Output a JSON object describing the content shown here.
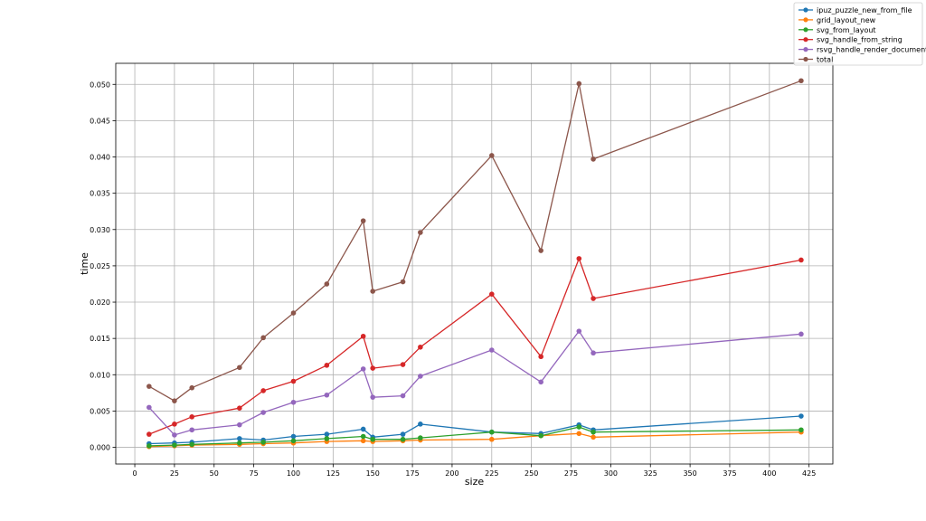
{
  "chart_data": {
    "type": "line",
    "xlabel": "size",
    "ylabel": "time",
    "xlim": [
      -12,
      440
    ],
    "ylim": [
      -0.0023,
      0.0529
    ],
    "xticks": [
      0,
      25,
      50,
      75,
      100,
      125,
      150,
      175,
      200,
      225,
      250,
      275,
      300,
      325,
      350,
      375,
      400,
      425
    ],
    "xtick_labels": [
      "0",
      "25",
      "50",
      "75",
      "100",
      "125",
      "150",
      "175",
      "200",
      "225",
      "250",
      "275",
      "300",
      "325",
      "350",
      "375",
      "400",
      "425"
    ],
    "yticks": [
      0.0,
      0.005,
      0.01,
      0.015,
      0.02,
      0.025,
      0.03,
      0.035,
      0.04,
      0.045,
      0.05
    ],
    "ytick_labels": [
      "0.000",
      "0.005",
      "0.010",
      "0.015",
      "0.020",
      "0.025",
      "0.030",
      "0.035",
      "0.040",
      "0.045",
      "0.050"
    ],
    "grid": true,
    "legend_position": "top-right, outside the plot area",
    "x": [
      9,
      25,
      36,
      66,
      81,
      100,
      121,
      144,
      150,
      169,
      180,
      225,
      256,
      280,
      289,
      420
    ],
    "series": [
      {
        "name": "ipuz_puzzle_new_from_file",
        "color": "#1f77b4",
        "values": [
          0.0005,
          0.0006,
          0.0007,
          0.0012,
          0.001,
          0.0015,
          0.0018,
          0.0025,
          0.0014,
          0.0018,
          0.0032,
          0.0021,
          0.0019,
          0.0031,
          0.0024,
          0.0043
        ]
      },
      {
        "name": "grid_layout_new",
        "color": "#ff7f0e",
        "values": [
          0.0001,
          0.0002,
          0.0003,
          0.0004,
          0.0005,
          0.0006,
          0.0008,
          0.0009,
          0.0008,
          0.0009,
          0.001,
          0.0011,
          0.0016,
          0.0019,
          0.0014,
          0.0021
        ]
      },
      {
        "name": "svg_from_layout",
        "color": "#2ca02c",
        "values": [
          0.0002,
          0.0003,
          0.0004,
          0.0006,
          0.0007,
          0.0009,
          0.0012,
          0.0015,
          0.0011,
          0.0011,
          0.0013,
          0.0021,
          0.0016,
          0.0028,
          0.0021,
          0.0024
        ]
      },
      {
        "name": "svg_handle_from_string",
        "color": "#d62728",
        "values": [
          0.0018,
          0.0032,
          0.0042,
          0.0054,
          0.0078,
          0.0091,
          0.0113,
          0.0153,
          0.0109,
          0.0114,
          0.0138,
          0.0211,
          0.0125,
          0.026,
          0.0205,
          0.0258
        ]
      },
      {
        "name": "rsvg_handle_render_document",
        "color": "#9467bd",
        "values": [
          0.0055,
          0.0017,
          0.0024,
          0.0031,
          0.0048,
          0.0062,
          0.0072,
          0.0108,
          0.0069,
          0.0071,
          0.0098,
          0.0134,
          0.009,
          0.016,
          0.013,
          0.0156
        ]
      },
      {
        "name": "total",
        "color": "#8c564b",
        "values": [
          0.0084,
          0.0064,
          0.0082,
          0.011,
          0.0151,
          0.0185,
          0.0225,
          0.0312,
          0.0215,
          0.0228,
          0.0296,
          0.0402,
          0.0271,
          0.0501,
          0.0397,
          0.0505
        ]
      }
    ]
  }
}
